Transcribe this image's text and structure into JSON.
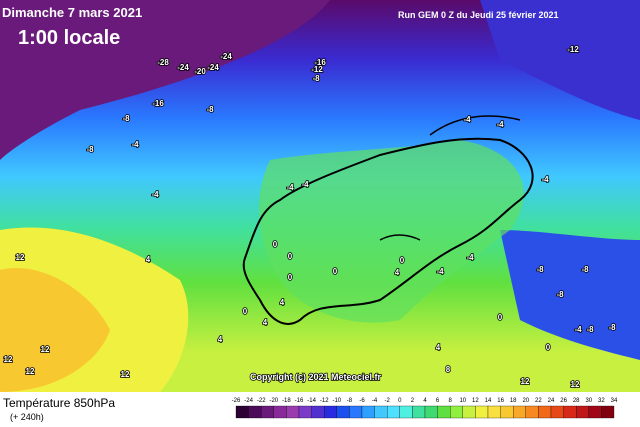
{
  "header": {
    "date": "Dimanche 7 mars 2021",
    "time": "1:00 locale",
    "run": "Run GEM 0 Z du Jeudi 25 février 2021"
  },
  "copyright": "Copyright (c) 2021 Meteociel.fr",
  "footer": {
    "title": "Température 850hPa",
    "subtitle": "(+ 240h)"
  },
  "map_labels": [
    -28,
    -24,
    -20,
    -24,
    -24,
    -16,
    -12,
    -8,
    -12,
    -16,
    -8,
    -8,
    -8,
    -4,
    -4,
    -4,
    -4,
    0,
    0,
    0,
    0,
    4,
    12,
    12,
    12,
    12,
    12,
    4,
    4,
    4,
    0,
    0,
    -4,
    -4,
    -4,
    -8,
    -8,
    -8,
    -8,
    -8,
    -4,
    0,
    0,
    4,
    8,
    12,
    12,
    4,
    -4,
    -4
  ],
  "colorbar": {
    "ticks": [
      -26,
      -24,
      -22,
      -20,
      -18,
      -16,
      -14,
      -12,
      -10,
      -8,
      -6,
      -4,
      -2,
      0,
      2,
      4,
      6,
      8,
      10,
      12,
      14,
      16,
      18,
      20,
      22,
      24,
      26,
      28,
      30,
      32,
      34
    ],
    "colors": [
      "#2b0033",
      "#4b0a5a",
      "#6a1a7a",
      "#8a2a9a",
      "#9a3cb0",
      "#7a3cc8",
      "#5030d0",
      "#2a2ae0",
      "#1a50f0",
      "#2a78ff",
      "#30a0ff",
      "#40c8ff",
      "#50e0ff",
      "#50f0e0",
      "#40e0a0",
      "#40d870",
      "#60e040",
      "#90f040",
      "#c8f040",
      "#f0f040",
      "#f8e040",
      "#f8c830",
      "#f8a828",
      "#f88820",
      "#f06818",
      "#e84818",
      "#d82818",
      "#c01818",
      "#a00818",
      "#800010"
    ]
  }
}
